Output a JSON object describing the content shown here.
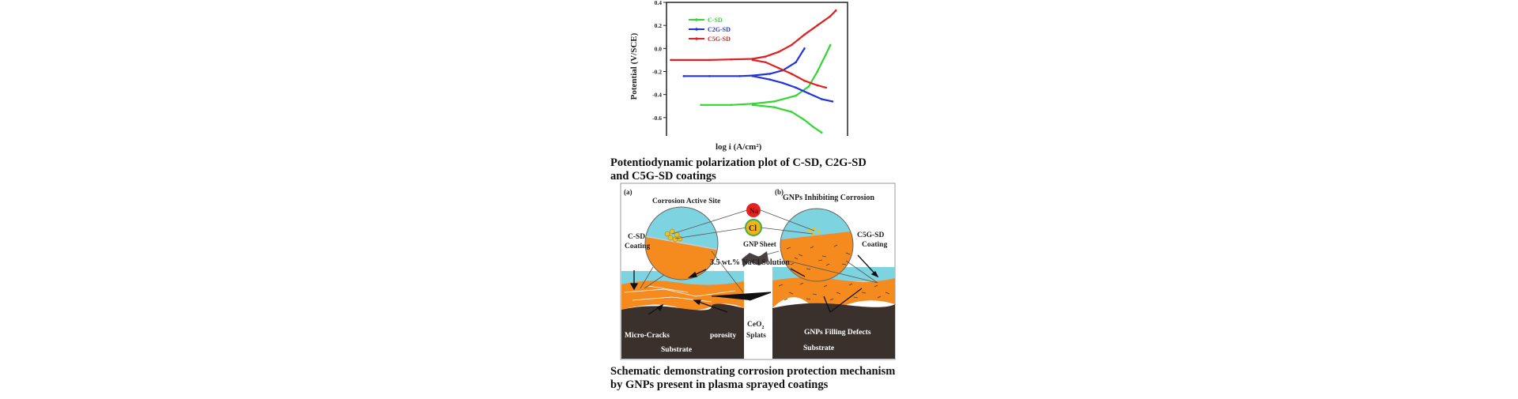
{
  "chart_data": {
    "type": "line",
    "xlabel": "log i (A/cm²)",
    "ylabel": "Potential (V/SCE)",
    "xlim": [
      -9,
      -4.8
    ],
    "ylim": [
      -0.8,
      0.4
    ],
    "xticks": [
      "-9",
      "-8",
      "-7",
      "-6",
      "-5"
    ],
    "xtick_values": [
      -9,
      -8,
      -7,
      -6,
      -5
    ],
    "yticks": [
      "0.4",
      "0.2",
      "0.0",
      "-0.2",
      "-0.4",
      "-0.6",
      "-0.8"
    ],
    "ytick_values": [
      0.4,
      0.2,
      0.0,
      -0.2,
      -0.4,
      -0.6,
      -0.8
    ],
    "legend_position": "top-left",
    "grid": false,
    "series": [
      {
        "name": "C-SD",
        "color": "#33d633",
        "anodic": [
          [
            -8.2,
            -0.49
          ],
          [
            -7.5,
            -0.49
          ],
          [
            -7,
            -0.48
          ],
          [
            -6.5,
            -0.46
          ],
          [
            -6.0,
            -0.41
          ],
          [
            -5.7,
            -0.33
          ],
          [
            -5.5,
            -0.2
          ],
          [
            -5.3,
            -0.05
          ],
          [
            -5.2,
            0.03
          ]
        ],
        "cathodic": [
          [
            -7,
            -0.49
          ],
          [
            -6.5,
            -0.51
          ],
          [
            -6.1,
            -0.55
          ],
          [
            -5.8,
            -0.62
          ],
          [
            -5.6,
            -0.68
          ],
          [
            -5.4,
            -0.73
          ]
        ]
      },
      {
        "name": "C2G-SD",
        "color": "#2233dd",
        "anodic": [
          [
            -8.6,
            -0.24
          ],
          [
            -8,
            -0.24
          ],
          [
            -7.3,
            -0.24
          ],
          [
            -7,
            -0.235
          ],
          [
            -6.6,
            -0.22
          ],
          [
            -6.3,
            -0.19
          ],
          [
            -6.0,
            -0.12
          ],
          [
            -5.8,
            0.0
          ]
        ],
        "cathodic": [
          [
            -7,
            -0.24
          ],
          [
            -6.6,
            -0.27
          ],
          [
            -6.3,
            -0.3
          ],
          [
            -6.0,
            -0.34
          ],
          [
            -5.7,
            -0.39
          ],
          [
            -5.4,
            -0.44
          ],
          [
            -5.15,
            -0.46
          ]
        ]
      },
      {
        "name": "C5G-SD",
        "color": "#e02020",
        "anodic": [
          [
            -8.9,
            -0.1
          ],
          [
            -8,
            -0.1
          ],
          [
            -7.5,
            -0.095
          ],
          [
            -7,
            -0.09
          ],
          [
            -6.7,
            -0.07
          ],
          [
            -6.4,
            -0.03
          ],
          [
            -6.1,
            0.03
          ],
          [
            -5.8,
            0.12
          ],
          [
            -5.5,
            0.2
          ],
          [
            -5.2,
            0.28
          ],
          [
            -5.07,
            0.33
          ]
        ],
        "cathodic": [
          [
            -7,
            -0.1
          ],
          [
            -6.7,
            -0.12
          ],
          [
            -6.4,
            -0.17
          ],
          [
            -6.1,
            -0.22
          ],
          [
            -5.8,
            -0.28
          ],
          [
            -5.5,
            -0.32
          ],
          [
            -5.3,
            -0.34
          ]
        ]
      }
    ]
  },
  "captions": {
    "plot_line1": "Potentiodynamic polarization plot of C-SD, C2G-SD",
    "plot_line2": "and C5G-SD coatings",
    "schematic_line1": "Schematic demonstrating corrosion protection mechanism",
    "schematic_line2": "by GNPs present in plasma sprayed coatings"
  },
  "schematic": {
    "panel_a": "(a)",
    "panel_b": "(b)",
    "corrosion_active_site": "Corrosion  Active Site",
    "gnps_inhibiting": "GNPs Inhibiting Corrosion",
    "na_ion": "Na",
    "cl_ion": "Cl",
    "gnp_sheet": "GNP Sheet",
    "csd_coating_1": "C-SD",
    "csd_coating_2": "Coating",
    "c5g_coating_1": "C5G-SD",
    "c5g_coating_2": "Coating",
    "nacl_solution": "3.5 wt.% NaCl Solution",
    "micro_cracks": "Micro-Cracks",
    "porosity": "porosity",
    "ceo2_1": "CeO",
    "ceo2_sub": "2",
    "ceo2_2": "Splats",
    "gnps_filling": "GNPs Filling  Defects",
    "substrate_a": "Substrate",
    "substrate_b": "Substrate",
    "colors": {
      "solution": "#7dd3df",
      "coating": "#f58a1f",
      "substrate": "#3a302c",
      "na": "#e52222",
      "cl": "#f2b21c"
    }
  }
}
